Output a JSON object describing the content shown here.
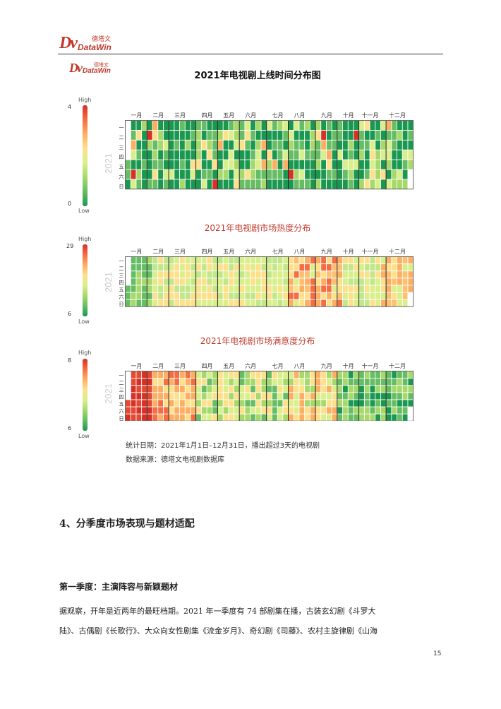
{
  "header": {
    "logo_mark": "Dv",
    "logo_cn": "德塔文",
    "logo_en": "DataWin"
  },
  "figure_logo": {
    "logo_mark": "Dv",
    "logo_cn": "德塔文",
    "logo_en": "DataWin"
  },
  "months": [
    "一月",
    "二月",
    "三月",
    "四月",
    "五月",
    "六月",
    "七月",
    "八月",
    "九月",
    "十月",
    "十一月",
    "十二月"
  ],
  "weekdays": [
    "一",
    "二",
    "三",
    "四",
    "五",
    "六",
    "日"
  ],
  "year": "2021",
  "legend_high": "High",
  "legend_low": "Low",
  "charts": [
    {
      "title": "2021年电视剧上线时间分布图",
      "max": "4",
      "min": "0",
      "title_color": "#111111"
    },
    {
      "title": "2021年电视剧市场热度分布",
      "max": "29",
      "min": "6",
      "title_color": "#c0392b"
    },
    {
      "title": "2021年电视剧市场满意度分布",
      "max": "8",
      "min": "6",
      "title_color": "#c0392b"
    }
  ],
  "chart_data": [
    {
      "type": "heatmap",
      "title": "2021年电视剧上线时间分布图",
      "x": "weeks of 2021",
      "y": [
        "一",
        "二",
        "三",
        "四",
        "五",
        "六",
        "日"
      ],
      "range": [
        0,
        4
      ],
      "months": [
        "一月",
        "二月",
        "三月",
        "四月",
        "五月",
        "六月",
        "七月",
        "八月",
        "九月",
        "十月",
        "十一月",
        "十二月"
      ]
    },
    {
      "type": "heatmap",
      "title": "2021年电视剧市场热度分布",
      "x": "weeks of 2021",
      "y": [
        "一",
        "二",
        "三",
        "四",
        "五",
        "六",
        "日"
      ],
      "range": [
        6,
        29
      ],
      "months": [
        "一月",
        "二月",
        "三月",
        "四月",
        "五月",
        "六月",
        "七月",
        "八月",
        "九月",
        "十月",
        "十一月",
        "十二月"
      ]
    },
    {
      "type": "heatmap",
      "title": "2021年电视剧市场满意度分布",
      "x": "weeks of 2021",
      "y": [
        "一",
        "二",
        "三",
        "四",
        "五",
        "六",
        "日"
      ],
      "range": [
        6,
        8
      ],
      "months": [
        "一月",
        "二月",
        "三月",
        "四月",
        "五月",
        "六月",
        "七月",
        "八月",
        "九月",
        "十月",
        "十一月",
        "十二月"
      ]
    }
  ],
  "notes": {
    "line1": "统计日期：2021年1月1日–12月31日，播出超过3天的电视剧",
    "line2": "数据来源：德塔文电视剧数据库"
  },
  "section_heading": "4、分季度市场表现与题材适配",
  "subsection_heading": "第一季度：主演阵容与新颖题材",
  "paragraph": {
    "line1": "据观察，开年是近两年的最旺档期。2021 年一季度有 74 部剧集在播，古装玄幻剧《斗罗大",
    "line2": "陆》、古偶剧《长歌行》、大众向女性剧集《流金岁月》、奇幻剧《司藤》、农村主旋律剧《山海"
  },
  "page_number": "15",
  "colors": {
    "brand": "#c0392b",
    "rule": "#333333"
  }
}
